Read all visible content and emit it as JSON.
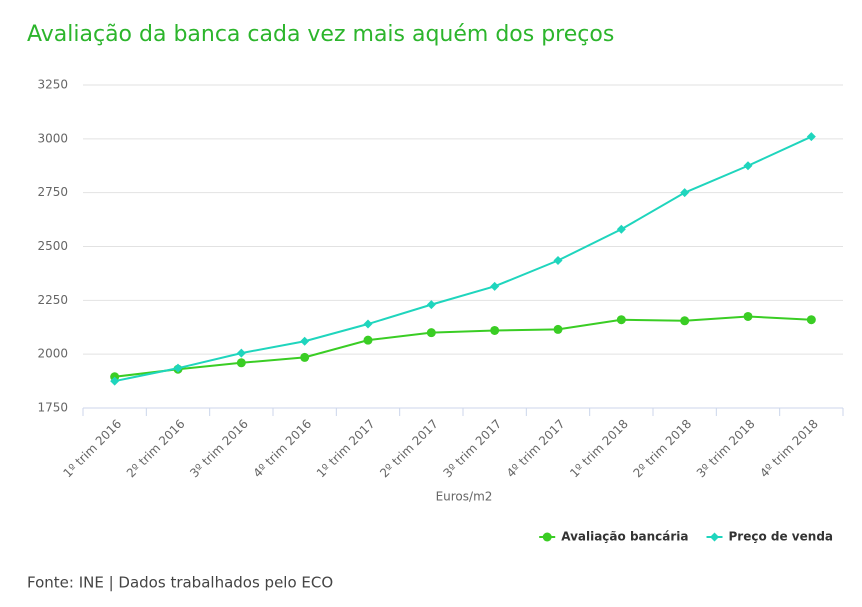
{
  "chart_data": {
    "type": "line",
    "title": "Avaliação da banca cada vez mais aquém dos preços",
    "x_label": "Euros/m2",
    "source": "Fonte: INE | Dados trabalhados pelo ECO",
    "categories": [
      "1º trim 2016",
      "2º trim 2016",
      "3º trim 2016",
      "4º trim 2016",
      "1º trim 2017",
      "2º trim 2017",
      "3º trim 2017",
      "4º trim 2017",
      "1º trim 2018",
      "2º trim 2018",
      "3º trim 2018",
      "4º trim 2018"
    ],
    "series": [
      {
        "name": "Avaliação bancária",
        "color": "#3acd24",
        "marker": "circle",
        "values": [
          1895,
          1930,
          1960,
          1985,
          2065,
          2100,
          2110,
          2115,
          2160,
          2155,
          2175,
          2160
        ]
      },
      {
        "name": "Preço de venda",
        "color": "#1fd5bd",
        "marker": "diamond",
        "values": [
          1875,
          1935,
          2005,
          2060,
          2140,
          2230,
          2315,
          2435,
          2580,
          2750,
          2875,
          3010
        ]
      }
    ],
    "ylim": [
      1750,
      3250
    ],
    "yticks": [
      1750,
      2000,
      2250,
      2500,
      2750,
      3000,
      3250
    ],
    "grid": true,
    "legend": "bottom-right"
  }
}
